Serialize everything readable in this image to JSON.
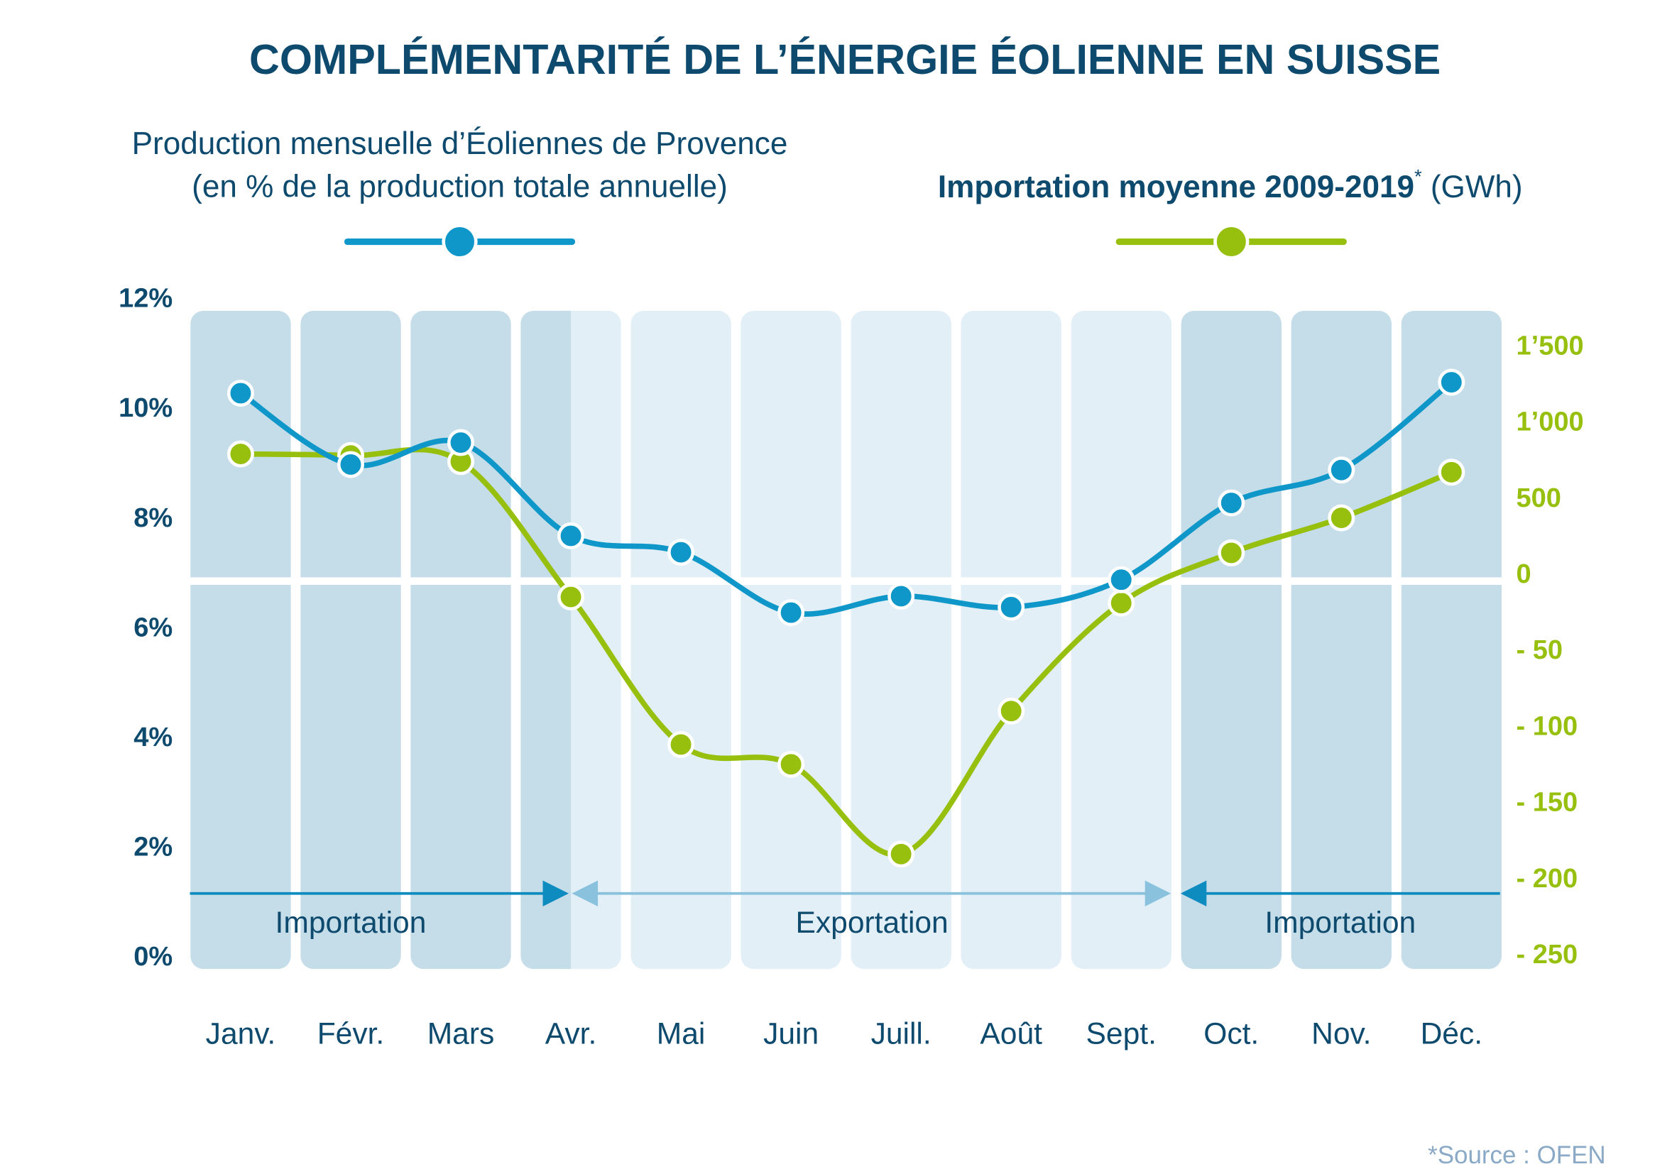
{
  "chart_data": {
    "type": "line",
    "title": "COMPLÉMENTARITÉ DE L’ÉNERGIE ÉOLIENNE EN SUISSE",
    "y_label": "Production mensuelle d’Éoliennes de Provence",
    "y_label_unit": "(en % de la production totale annuelle)",
    "y2_label": "Importation moyenne 2009-2019",
    "y2_label_mark": "*",
    "y2_label_unit": "(GWh)",
    "source": "*Source : OFEN",
    "categories": [
      "Janv.",
      "Févr.",
      "Mars",
      "Avr.",
      "Mai",
      "Juin",
      "Juill.",
      "Août",
      "Sept.",
      "Oct.",
      "Nov.",
      "Déc."
    ],
    "series": [
      {
        "name": "Production mensuelle d’Éoliennes de Provence",
        "color": "#0e97c8",
        "axis": "y",
        "values": [
          10.3,
          9.0,
          9.4,
          7.7,
          7.4,
          6.3,
          6.6,
          6.4,
          6.9,
          8.3,
          8.9,
          10.5
        ]
      },
      {
        "name": "Importation moyenne 2009-2019",
        "color": "#97bf0d",
        "axis": "y2",
        "values": [
          800,
          790,
          750,
          -14,
          -111,
          -124,
          -183,
          -89,
          -18,
          150,
          380,
          680
        ]
      }
    ],
    "ylim": [
      0,
      12
    ],
    "yticks": [
      {
        "value": 0,
        "label": "0%"
      },
      {
        "value": 2,
        "label": "2%"
      },
      {
        "value": 4,
        "label": "4%"
      },
      {
        "value": 6,
        "label": "6%"
      },
      {
        "value": 8,
        "label": "8%"
      },
      {
        "value": 10,
        "label": "10%"
      },
      {
        "value": 12,
        "label": "12%"
      }
    ],
    "y2lim": [
      -250,
      1500
    ],
    "y2ticks": [
      {
        "value": 1500,
        "label": "1’500"
      },
      {
        "value": 1000,
        "label": "1’000"
      },
      500,
      0,
      {
        "value": -50,
        "label": "- 50"
      },
      {
        "value": -100,
        "label": "- 100"
      },
      {
        "value": -150,
        "label": "- 150"
      },
      {
        "value": -200,
        "label": "- 200"
      },
      {
        "value": -250,
        "label": "- 250"
      }
    ],
    "annotations": [
      "Importation",
      "Exportation",
      "Importation"
    ]
  }
}
